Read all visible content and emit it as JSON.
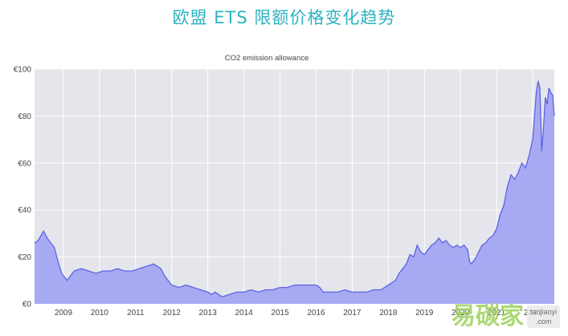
{
  "header": {
    "title": "欧盟 ETS 限额价格变化趋势",
    "title_color": "#2bb3c0"
  },
  "chart_data": {
    "type": "area",
    "title": "CO2 emission allowance",
    "xlabel": "",
    "ylabel": "",
    "ylim": [
      0,
      100
    ],
    "yticks": [
      "€0",
      "€20",
      "€40",
      "€60",
      "€80",
      "€100"
    ],
    "xticks": [
      "2009",
      "2010",
      "2011",
      "2012",
      "2013",
      "2014",
      "2015",
      "2016",
      "2017",
      "2018",
      "2019",
      "2020",
      "2021",
      "2022"
    ],
    "xlim": [
      2008.2,
      2022.6
    ],
    "grid": true,
    "legend": "none",
    "colors": {
      "fill": "#a3a7f3",
      "line": "#5d64e3",
      "plot_bg": "#e5e5ec",
      "grid": "#ffffff"
    },
    "series": [
      {
        "x": [
          2008.2,
          2008.3,
          2008.45,
          2008.55,
          2008.65,
          2008.75,
          2008.85,
          2008.95,
          2009.1,
          2009.3,
          2009.5,
          2009.7,
          2009.9,
          2010.1,
          2010.3,
          2010.5,
          2010.7,
          2010.9,
          2011.1,
          2011.3,
          2011.5,
          2011.6,
          2011.7,
          2011.8,
          2011.9,
          2012.0,
          2012.2,
          2012.4,
          2012.6,
          2012.8,
          2013.0,
          2013.1,
          2013.2,
          2013.3,
          2013.4,
          2013.6,
          2013.8,
          2014.0,
          2014.2,
          2014.4,
          2014.6,
          2014.8,
          2015.0,
          2015.2,
          2015.4,
          2015.6,
          2015.8,
          2016.0,
          2016.1,
          2016.2,
          2016.4,
          2016.6,
          2016.8,
          2017.0,
          2017.2,
          2017.4,
          2017.6,
          2017.8,
          2018.0,
          2018.1,
          2018.2,
          2018.3,
          2018.4,
          2018.5,
          2018.6,
          2018.7,
          2018.8,
          2018.9,
          2019.0,
          2019.1,
          2019.2,
          2019.3,
          2019.4,
          2019.5,
          2019.6,
          2019.7,
          2019.8,
          2019.9,
          2020.0,
          2020.1,
          2020.2,
          2020.25,
          2020.3,
          2020.4,
          2020.5,
          2020.6,
          2020.7,
          2020.8,
          2020.9,
          2021.0,
          2021.1,
          2021.2,
          2021.3,
          2021.4,
          2021.5,
          2021.6,
          2021.7,
          2021.8,
          2021.9,
          2022.0,
          2022.05,
          2022.1,
          2022.15,
          2022.2,
          2022.25,
          2022.3,
          2022.35,
          2022.4,
          2022.45,
          2022.5,
          2022.55,
          2022.6
        ],
        "y": [
          26,
          27,
          31,
          28,
          26,
          24,
          18,
          13,
          10,
          14,
          15,
          14,
          13,
          14,
          14,
          15,
          14,
          14,
          15,
          16,
          17,
          16,
          15,
          12,
          10,
          8,
          7,
          8,
          7,
          6,
          5,
          4,
          5,
          4,
          3,
          4,
          5,
          5,
          6,
          5,
          6,
          6,
          7,
          7,
          8,
          8,
          8,
          8,
          7,
          5,
          5,
          5,
          6,
          5,
          5,
          5,
          6,
          6,
          8,
          9,
          10,
          13,
          15,
          17,
          21,
          20,
          25,
          22,
          21,
          23,
          25,
          26,
          28,
          26,
          27,
          25,
          24,
          25,
          24,
          25,
          23,
          18,
          17,
          19,
          22,
          25,
          26,
          28,
          29,
          32,
          38,
          42,
          50,
          55,
          53,
          56,
          60,
          58,
          63,
          70,
          80,
          90,
          95,
          92,
          65,
          75,
          88,
          85,
          92,
          90,
          89,
          80
        ]
      }
    ]
  },
  "watermark": {
    "mark": "易碳家",
    "line1": "tanjiaoyi",
    "line2": ".com"
  }
}
